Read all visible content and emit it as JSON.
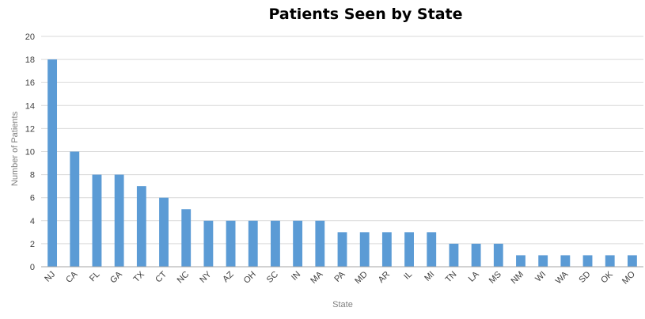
{
  "chart_data": {
    "type": "bar",
    "title": "Patients Seen by State",
    "xlabel": "State",
    "ylabel": "Number of Patients",
    "categories": [
      "NJ",
      "CA",
      "FL",
      "GA",
      "TX",
      "CT",
      "NC",
      "NY",
      "AZ",
      "OH",
      "SC",
      "IN",
      "MA",
      "PA",
      "MD",
      "AR",
      "IL",
      "MI",
      "TN",
      "LA",
      "MS",
      "NM",
      "WI",
      "WA",
      "SD",
      "OK",
      "MO"
    ],
    "values": [
      18,
      10,
      8,
      8,
      7,
      6,
      5,
      4,
      4,
      4,
      4,
      4,
      4,
      3,
      3,
      3,
      3,
      3,
      2,
      2,
      2,
      1,
      1,
      1,
      1,
      1,
      1
    ],
    "ylim": [
      0,
      20
    ],
    "yticks": [
      0,
      2,
      4,
      6,
      8,
      10,
      12,
      14,
      16,
      18,
      20
    ],
    "grid": true,
    "legend": "none",
    "bar_color": "#5b9bd5"
  }
}
